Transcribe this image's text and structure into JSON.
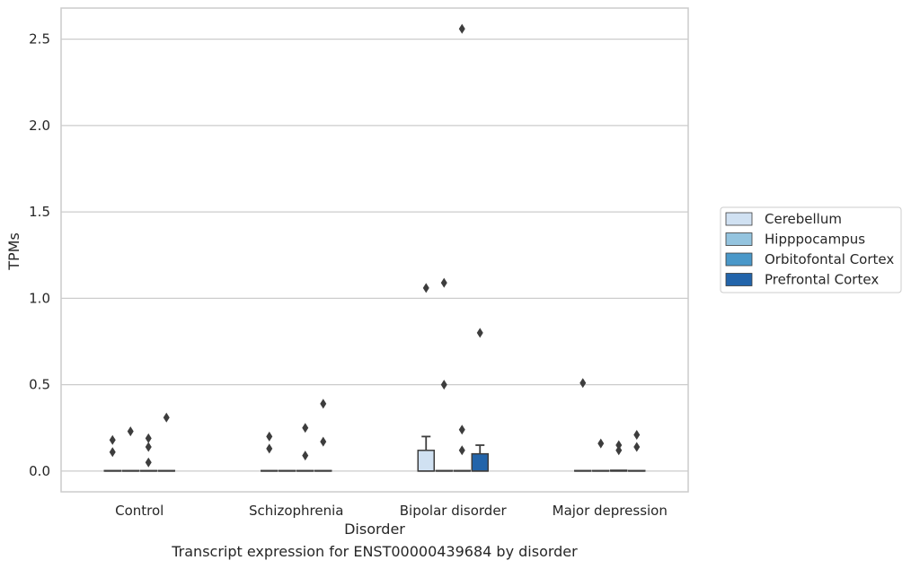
{
  "chart_data": {
    "type": "box",
    "xlabel": "Disorder",
    "ylabel": "TPMs",
    "caption": "Transcript expression for ENST00000439684 by disorder",
    "categories": [
      "Control",
      "Schizophrenia",
      "Bipolar disorder",
      "Major depression"
    ],
    "ylim": [
      -0.12,
      2.68
    ],
    "yticks": [
      "0.0",
      "0.5",
      "1.0",
      "1.5",
      "2.0",
      "2.5"
    ],
    "grid": "horizontal",
    "legend_position": "right",
    "series": [
      {
        "name": "Cerebellum",
        "color": "#d0e1f2",
        "boxes": [
          {
            "q1": 0,
            "median": 0,
            "q3": 0,
            "whisker_low": 0,
            "whisker_high": 0,
            "outliers": [
              0.11,
              0.18
            ]
          },
          {
            "q1": 0,
            "median": 0,
            "q3": 0,
            "whisker_low": 0,
            "whisker_high": 0,
            "outliers": [
              0.13,
              0.2
            ]
          },
          {
            "q1": 0,
            "median": 0,
            "q3": 0.12,
            "whisker_low": 0,
            "whisker_high": 0.2,
            "outliers": [
              1.06
            ]
          },
          {
            "q1": 0,
            "median": 0,
            "q3": 0,
            "whisker_low": 0,
            "whisker_high": 0,
            "outliers": [
              0.51
            ]
          }
        ]
      },
      {
        "name": "Hipppocampus",
        "color": "#94c4df",
        "boxes": [
          {
            "q1": 0,
            "median": 0,
            "q3": 0,
            "whisker_low": 0,
            "whisker_high": 0,
            "outliers": [
              0.23
            ]
          },
          {
            "q1": 0,
            "median": 0,
            "q3": 0,
            "whisker_low": 0,
            "whisker_high": 0,
            "outliers": []
          },
          {
            "q1": 0,
            "median": 0,
            "q3": 0,
            "whisker_low": 0,
            "whisker_high": 0,
            "outliers": [
              0.5,
              1.09
            ]
          },
          {
            "q1": 0,
            "median": 0,
            "q3": 0,
            "whisker_low": 0,
            "whisker_high": 0,
            "outliers": [
              0.16
            ]
          }
        ]
      },
      {
        "name": "Orbitofontal Cortex",
        "color": "#4a98c9",
        "boxes": [
          {
            "q1": 0,
            "median": 0,
            "q3": 0,
            "whisker_low": 0,
            "whisker_high": 0,
            "outliers": [
              0.05,
              0.14,
              0.19
            ]
          },
          {
            "q1": 0,
            "median": 0,
            "q3": 0,
            "whisker_low": 0,
            "whisker_high": 0,
            "outliers": [
              0.09,
              0.25
            ]
          },
          {
            "q1": 0,
            "median": 0,
            "q3": 0,
            "whisker_low": 0,
            "whisker_high": 0,
            "outliers": [
              0.12,
              0.24,
              2.56
            ]
          },
          {
            "q1": 0,
            "median": 0,
            "q3": 0.005,
            "whisker_low": 0,
            "whisker_high": 0.005,
            "outliers": [
              0.12,
              0.15
            ]
          }
        ]
      },
      {
        "name": "Prefrontal Cortex",
        "color": "#2264aa",
        "boxes": [
          {
            "q1": 0,
            "median": 0,
            "q3": 0,
            "whisker_low": 0,
            "whisker_high": 0,
            "outliers": [
              0.31
            ]
          },
          {
            "q1": 0,
            "median": 0,
            "q3": 0,
            "whisker_low": 0,
            "whisker_high": 0,
            "outliers": [
              0.17,
              0.39
            ]
          },
          {
            "q1": 0,
            "median": 0,
            "q3": 0.1,
            "whisker_low": 0,
            "whisker_high": 0.15,
            "outliers": [
              0.8
            ]
          },
          {
            "q1": 0,
            "median": 0,
            "q3": 0,
            "whisker_low": 0,
            "whisker_high": 0,
            "outliers": [
              0.14,
              0.21
            ]
          }
        ]
      }
    ]
  }
}
